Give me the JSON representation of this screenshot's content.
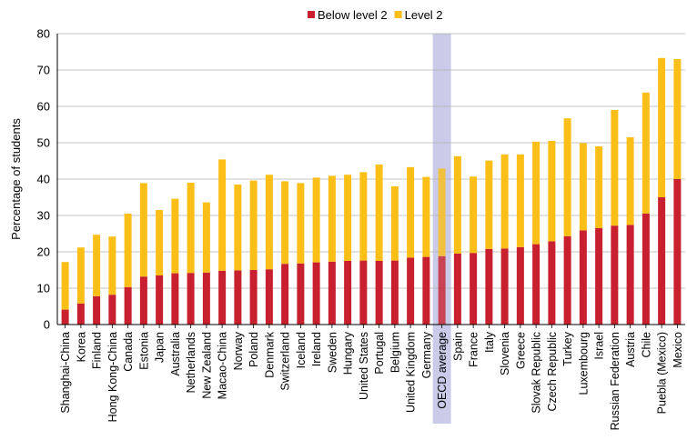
{
  "chart_data": {
    "type": "bar",
    "stacked": true,
    "ylabel": "Percentage of students",
    "ylim": [
      0,
      80
    ],
    "yticks": [
      0,
      10,
      20,
      30,
      40,
      50,
      60,
      70,
      80
    ],
    "grid": true,
    "legend_position": "top-center",
    "highlight_category": "OECD average",
    "colors": {
      "Below level 2": "#c8202e",
      "Level 2": "#fbbf17",
      "highlight": "#c9cbe8"
    },
    "categories": [
      "Shanghai-China",
      "Korea",
      "Finland",
      "Hong Kong-China",
      "Canada",
      "Estonia",
      "Japan",
      "Australia",
      "Netherlands",
      "New Zealand",
      "Macao-China",
      "Norway",
      "Poland",
      "Denmark",
      "Switzerland",
      "Iceland",
      "Ireland",
      "Sweden",
      "Hungary",
      "United States",
      "Portugal",
      "Belgium",
      "United Kingdom",
      "Germany",
      "OECD average",
      "Spain",
      "France",
      "Italy",
      "Slovenia",
      "Greece",
      "Slovak Republic",
      "Czech Republic",
      "Turkey",
      "Luxembourg",
      "Israel",
      "Russian Federation",
      "Austria",
      "Chile",
      "Puebla (Mexico)",
      "Mexico"
    ],
    "series": [
      {
        "name": "Below level 2",
        "values": [
          4.1,
          5.8,
          7.8,
          8.2,
          10.3,
          13.2,
          13.5,
          14.1,
          14.2,
          14.3,
          14.8,
          14.9,
          15.0,
          15.2,
          16.7,
          16.8,
          17.1,
          17.3,
          17.5,
          17.6,
          17.5,
          17.6,
          18.4,
          18.6,
          18.8,
          19.5,
          19.7,
          20.8,
          20.9,
          21.3,
          22.1,
          22.9,
          24.3,
          25.9,
          26.5,
          27.2,
          27.4,
          30.5,
          35.0,
          40.0
        ]
      },
      {
        "name": "Level 2",
        "values": [
          13.1,
          15.4,
          16.9,
          16.0,
          20.2,
          25.7,
          18.0,
          20.5,
          24.8,
          19.3,
          30.6,
          23.6,
          24.6,
          26.0,
          22.7,
          22.1,
          23.3,
          23.6,
          23.7,
          24.3,
          26.5,
          20.4,
          24.9,
          22.0,
          24.1,
          26.8,
          21.0,
          24.3,
          25.9,
          25.5,
          28.2,
          27.6,
          32.4,
          24.0,
          22.5,
          31.8,
          24.1,
          33.3,
          38.3,
          33.0
        ]
      }
    ]
  }
}
